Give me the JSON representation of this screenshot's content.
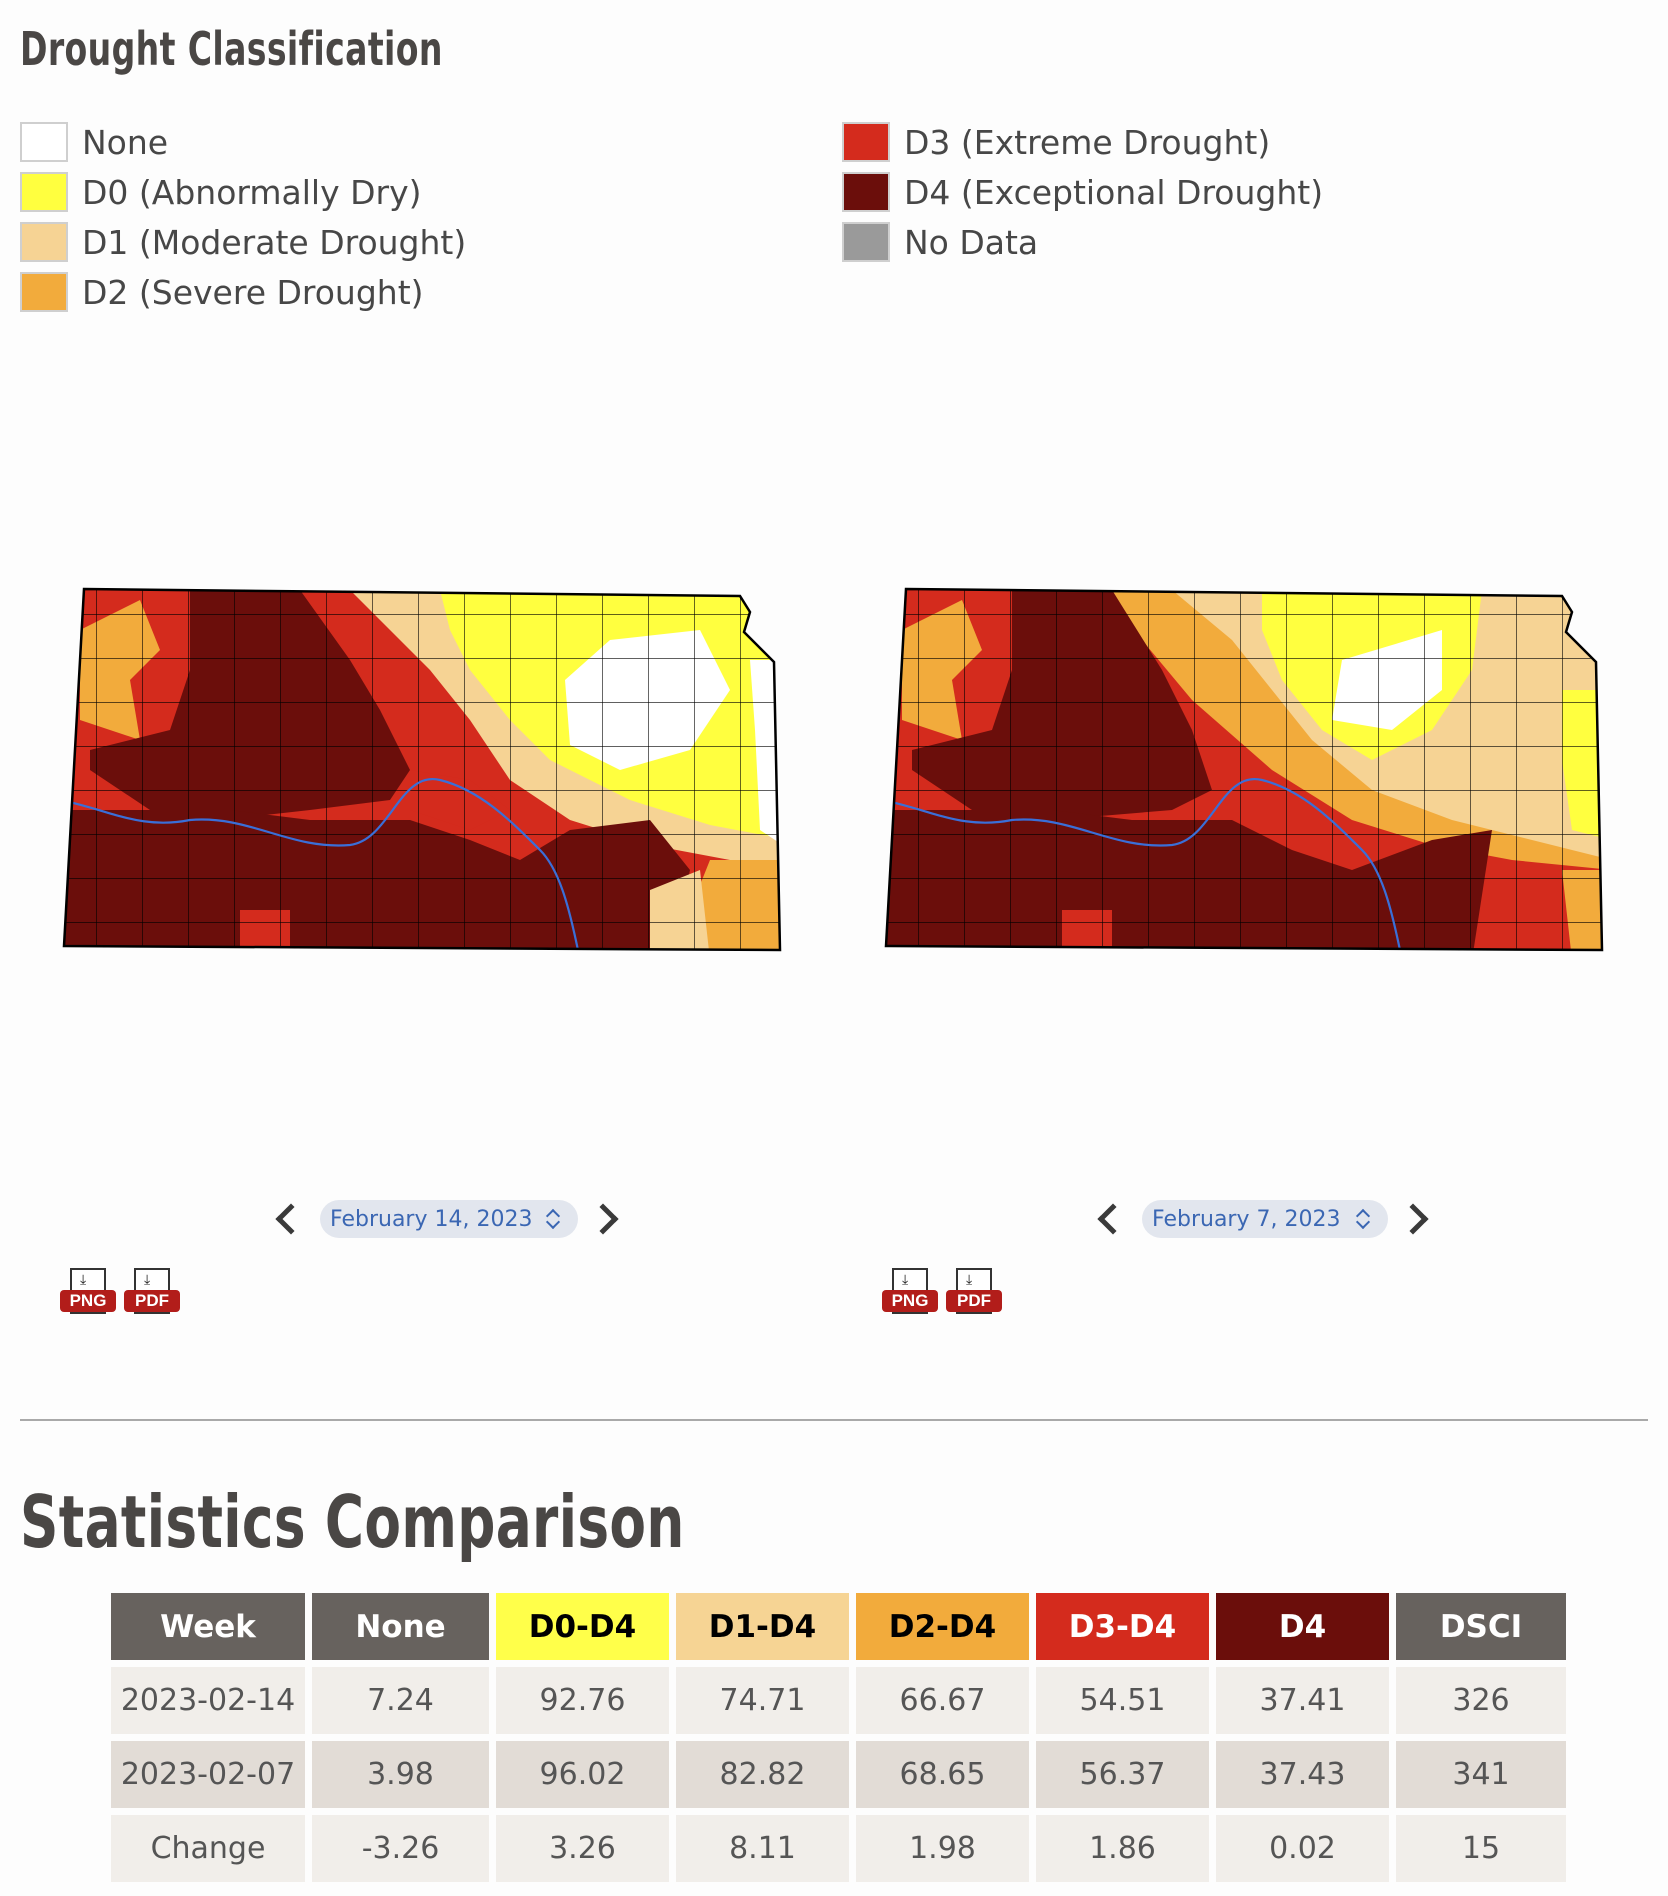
{
  "drought_section": {
    "title": "Drought Classification",
    "legend": [
      {
        "label": "None",
        "color": "#ffffff"
      },
      {
        "label": "D0 (Abnormally Dry)",
        "color": "#ffff3f"
      },
      {
        "label": "D1 (Moderate Drought)",
        "color": "#f6d394"
      },
      {
        "label": "D2 (Severe Drought)",
        "color": "#f2ab3c"
      },
      {
        "label": "D3 (Extreme Drought)",
        "color": "#d42b1d"
      },
      {
        "label": "D4 (Exceptional Drought)",
        "color": "#6b0e0b"
      },
      {
        "label": "No Data",
        "color": "#9a9a9a"
      }
    ]
  },
  "maps": [
    {
      "date": "February 14, 2023",
      "downloads": {
        "png": "PNG",
        "pdf": "PDF"
      }
    },
    {
      "date": "February 7, 2023",
      "downloads": {
        "png": "PNG",
        "pdf": "PDF"
      }
    }
  ],
  "stats_section": {
    "title": "Statistics Comparison",
    "headers": [
      "Week",
      "None",
      "D0-D4",
      "D1-D4",
      "D2-D4",
      "D3-D4",
      "D4",
      "DSCI"
    ],
    "rows": [
      [
        "2023-02-14",
        "7.24",
        "92.76",
        "74.71",
        "66.67",
        "54.51",
        "37.41",
        "326"
      ],
      [
        "2023-02-07",
        "3.98",
        "96.02",
        "82.82",
        "68.65",
        "56.37",
        "37.43",
        "341"
      ],
      [
        "Change",
        "-3.26",
        "3.26",
        "8.11",
        "1.98",
        "1.86",
        "0.02",
        "15"
      ]
    ]
  }
}
